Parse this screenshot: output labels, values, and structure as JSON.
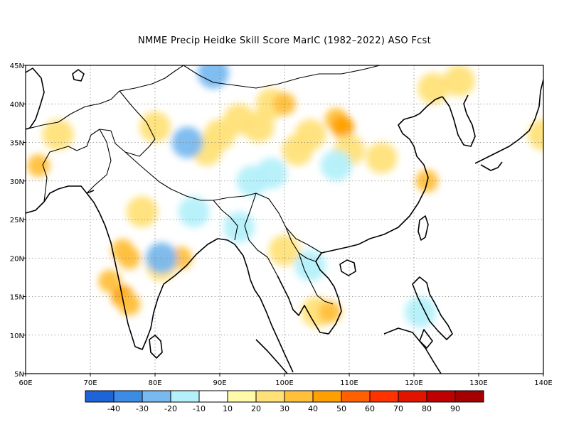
{
  "title": "NMME Precip Heidke Skill Score MarIC (1982–2022) ASO Fcst",
  "map": {
    "lon_range": [
      60,
      140
    ],
    "lat_range": [
      5,
      45
    ],
    "x_ticks": [
      "60E",
      "70E",
      "80E",
      "90E",
      "100E",
      "110E",
      "120E",
      "130E",
      "140E"
    ],
    "y_ticks": [
      "5N",
      "10N",
      "15N",
      "20N",
      "25N",
      "30N",
      "35N",
      "40N",
      "45N"
    ],
    "gridlines": "dotted"
  },
  "colorbar": {
    "colors": [
      "#1e64d8",
      "#3c8ce6",
      "#78b9f0",
      "#b4f0fa",
      "#ffffff",
      "#fffaaa",
      "#ffe178",
      "#ffc03c",
      "#ffa000",
      "#ff6000",
      "#ff3200",
      "#e11400",
      "#c00000",
      "#a50000"
    ],
    "labels": [
      "-40",
      "-30",
      "-20",
      "-10",
      "10",
      "20",
      "30",
      "40",
      "50",
      "60",
      "70",
      "80",
      "90"
    ]
  },
  "chart_data": {
    "type": "heatmap",
    "title": "NMME Precip Heidke Skill Score MarIC (1982–2022) ASO Fcst",
    "xlabel": "",
    "ylabel": "",
    "x_range": [
      60,
      140
    ],
    "y_range": [
      5,
      45
    ],
    "cells": [
      {
        "lon": 93,
        "lat": 38,
        "v": 20
      },
      {
        "lon": 96,
        "lat": 37,
        "v": 20
      },
      {
        "lon": 108,
        "lat": 38,
        "v": 30
      },
      {
        "lon": 109,
        "lat": 37,
        "v": 40
      },
      {
        "lon": 104,
        "lat": 36,
        "v": 20
      },
      {
        "lon": 102,
        "lat": 34,
        "v": 20
      },
      {
        "lon": 110,
        "lat": 34,
        "v": 20
      },
      {
        "lon": 115,
        "lat": 33,
        "v": 20
      },
      {
        "lon": 98,
        "lat": 40,
        "v": 20
      },
      {
        "lon": 100,
        "lat": 40,
        "v": 30
      },
      {
        "lon": 90,
        "lat": 36,
        "v": 20
      },
      {
        "lon": 88,
        "lat": 34,
        "v": 20
      },
      {
        "lon": 127,
        "lat": 43,
        "v": 20
      },
      {
        "lon": 123,
        "lat": 42,
        "v": 20
      },
      {
        "lon": 75,
        "lat": 21,
        "v": 30
      },
      {
        "lon": 76,
        "lat": 20,
        "v": 30
      },
      {
        "lon": 75,
        "lat": 15,
        "v": 40
      },
      {
        "lon": 76,
        "lat": 14,
        "v": 30
      },
      {
        "lon": 78,
        "lat": 26,
        "v": 20
      },
      {
        "lon": 81,
        "lat": 19,
        "v": 20
      },
      {
        "lon": 73,
        "lat": 17,
        "v": 30
      },
      {
        "lon": 84,
        "lat": 20,
        "v": 30
      },
      {
        "lon": 62,
        "lat": 32,
        "v": 30
      },
      {
        "lon": 105,
        "lat": 13,
        "v": 20
      },
      {
        "lon": 107,
        "lat": 13,
        "v": 30
      },
      {
        "lon": 100,
        "lat": 21,
        "v": 20
      },
      {
        "lon": 140,
        "lat": 36,
        "v": 20
      },
      {
        "lon": 65,
        "lat": 36,
        "v": 20
      },
      {
        "lon": 80,
        "lat": 37,
        "v": 20
      },
      {
        "lon": 122,
        "lat": 30,
        "v": 30
      },
      {
        "lon": 89,
        "lat": 44,
        "v": -20
      },
      {
        "lon": 95,
        "lat": 30,
        "v": -10
      },
      {
        "lon": 98,
        "lat": 31,
        "v": -10
      },
      {
        "lon": 85,
        "lat": 35,
        "v": -20
      },
      {
        "lon": 81,
        "lat": 20,
        "v": -20
      },
      {
        "lon": 93,
        "lat": 24,
        "v": -10
      },
      {
        "lon": 108,
        "lat": 32,
        "v": -10
      },
      {
        "lon": 121,
        "lat": 13,
        "v": -10
      },
      {
        "lon": 104,
        "lat": 19,
        "v": -10
      },
      {
        "lon": 86,
        "lat": 26,
        "v": -10
      }
    ]
  }
}
